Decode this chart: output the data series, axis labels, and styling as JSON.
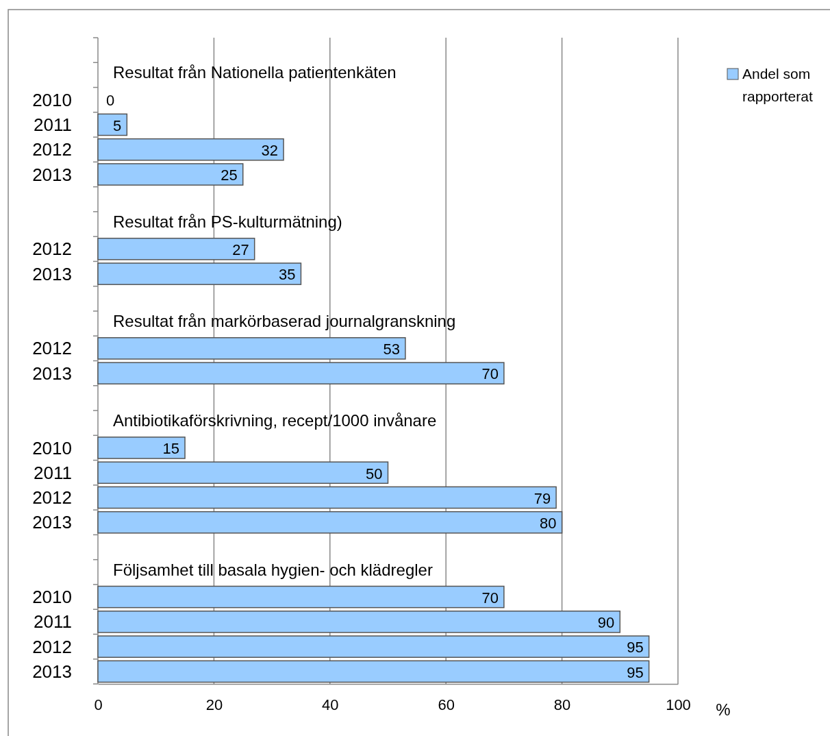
{
  "chart_data": {
    "type": "bar",
    "orientation": "horizontal",
    "categories": [
      null,
      null,
      "2010",
      "2011",
      "2012",
      "2013",
      null,
      null,
      "2012",
      "2013",
      null,
      null,
      "2012",
      "2013",
      null,
      null,
      "2010",
      "2011",
      "2012",
      "2013",
      null,
      null,
      "2010",
      "2011",
      "2012",
      "2013"
    ],
    "series": [
      {
        "name": "Andel som rapporterat",
        "color": "#99ccff",
        "values": [
          null,
          null,
          0,
          5,
          32,
          25,
          null,
          null,
          27,
          35,
          null,
          null,
          53,
          70,
          null,
          null,
          15,
          50,
          79,
          80,
          null,
          null,
          70,
          90,
          95,
          95
        ]
      }
    ],
    "xlabel": "%",
    "xlim": [
      0,
      100
    ],
    "xticks": [
      0,
      20,
      40,
      60,
      80,
      100
    ],
    "grid": "x",
    "legend": "right",
    "data_labels": true,
    "annotations": [
      "Resultat från Nationella patientenkäten",
      "Resultat från PS-kulturmätning)",
      "Resultat från markörbaserad journalgranskning",
      "Antibiotikaförskrivning, recept/1000 invånare",
      "Följsamhet till basala hygien- och klädregler"
    ]
  }
}
